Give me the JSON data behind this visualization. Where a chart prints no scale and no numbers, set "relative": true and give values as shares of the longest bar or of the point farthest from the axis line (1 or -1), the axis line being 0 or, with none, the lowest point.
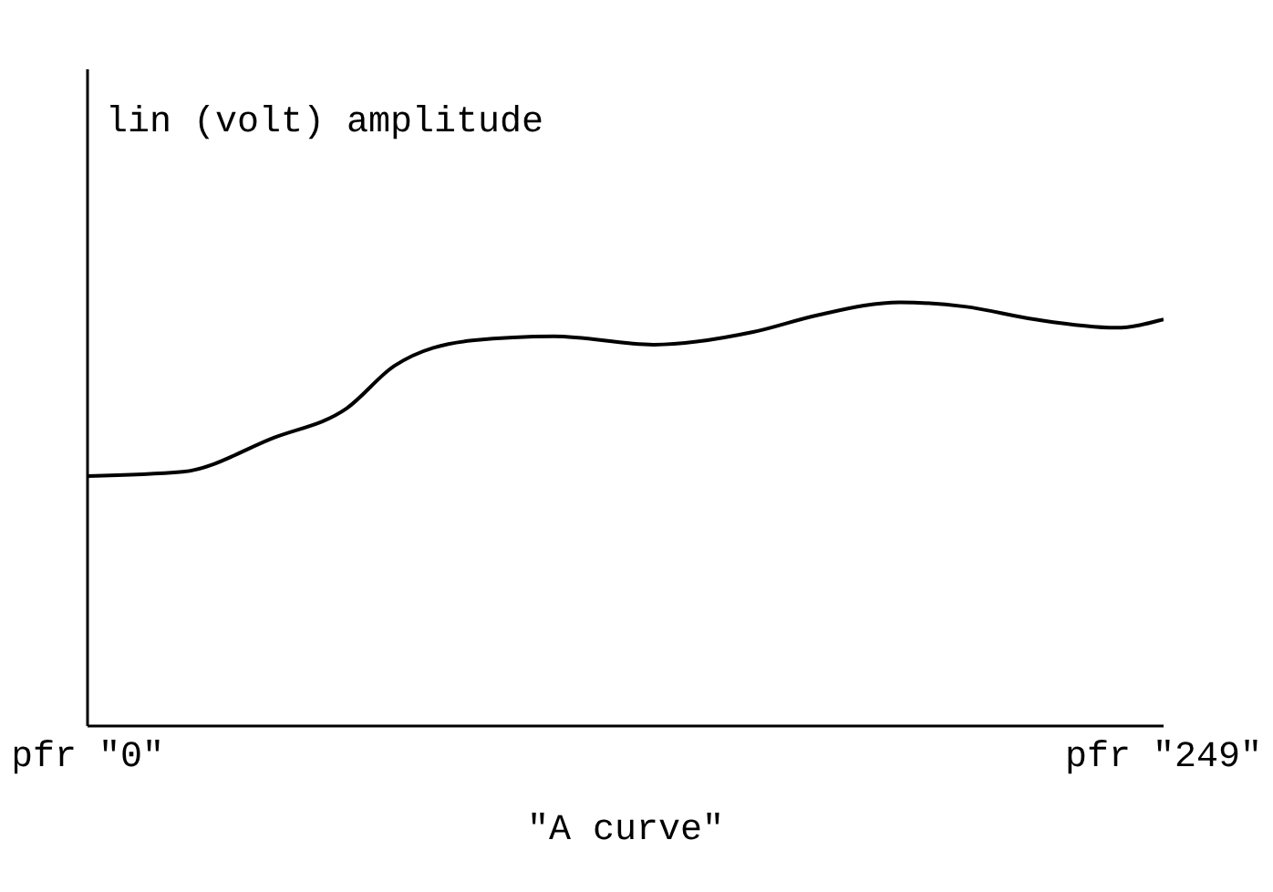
{
  "chart_data": {
    "type": "line",
    "relative": true,
    "ylabel": "lin (volt) amplitude",
    "xlabel": "\"A curve\"",
    "xlim": [
      0,
      249
    ],
    "xticks": [
      {
        "value": 0,
        "label": "pfr \"0\""
      },
      {
        "value": 249,
        "label": "pfr \"249\""
      }
    ],
    "marker": "none",
    "line_style": "solid",
    "series": [
      {
        "color": "#000000",
        "x": [
          0,
          22,
          43,
          60,
          71,
          89,
          108,
          131,
          154,
          169,
          188,
          203,
          219,
          238,
          249
        ],
        "values": [
          0.59,
          0.6,
          0.68,
          0.75,
          0.85,
          0.91,
          0.92,
          0.9,
          0.93,
          0.97,
          1.0,
          0.99,
          0.96,
          0.94,
          0.96
        ]
      }
    ]
  }
}
